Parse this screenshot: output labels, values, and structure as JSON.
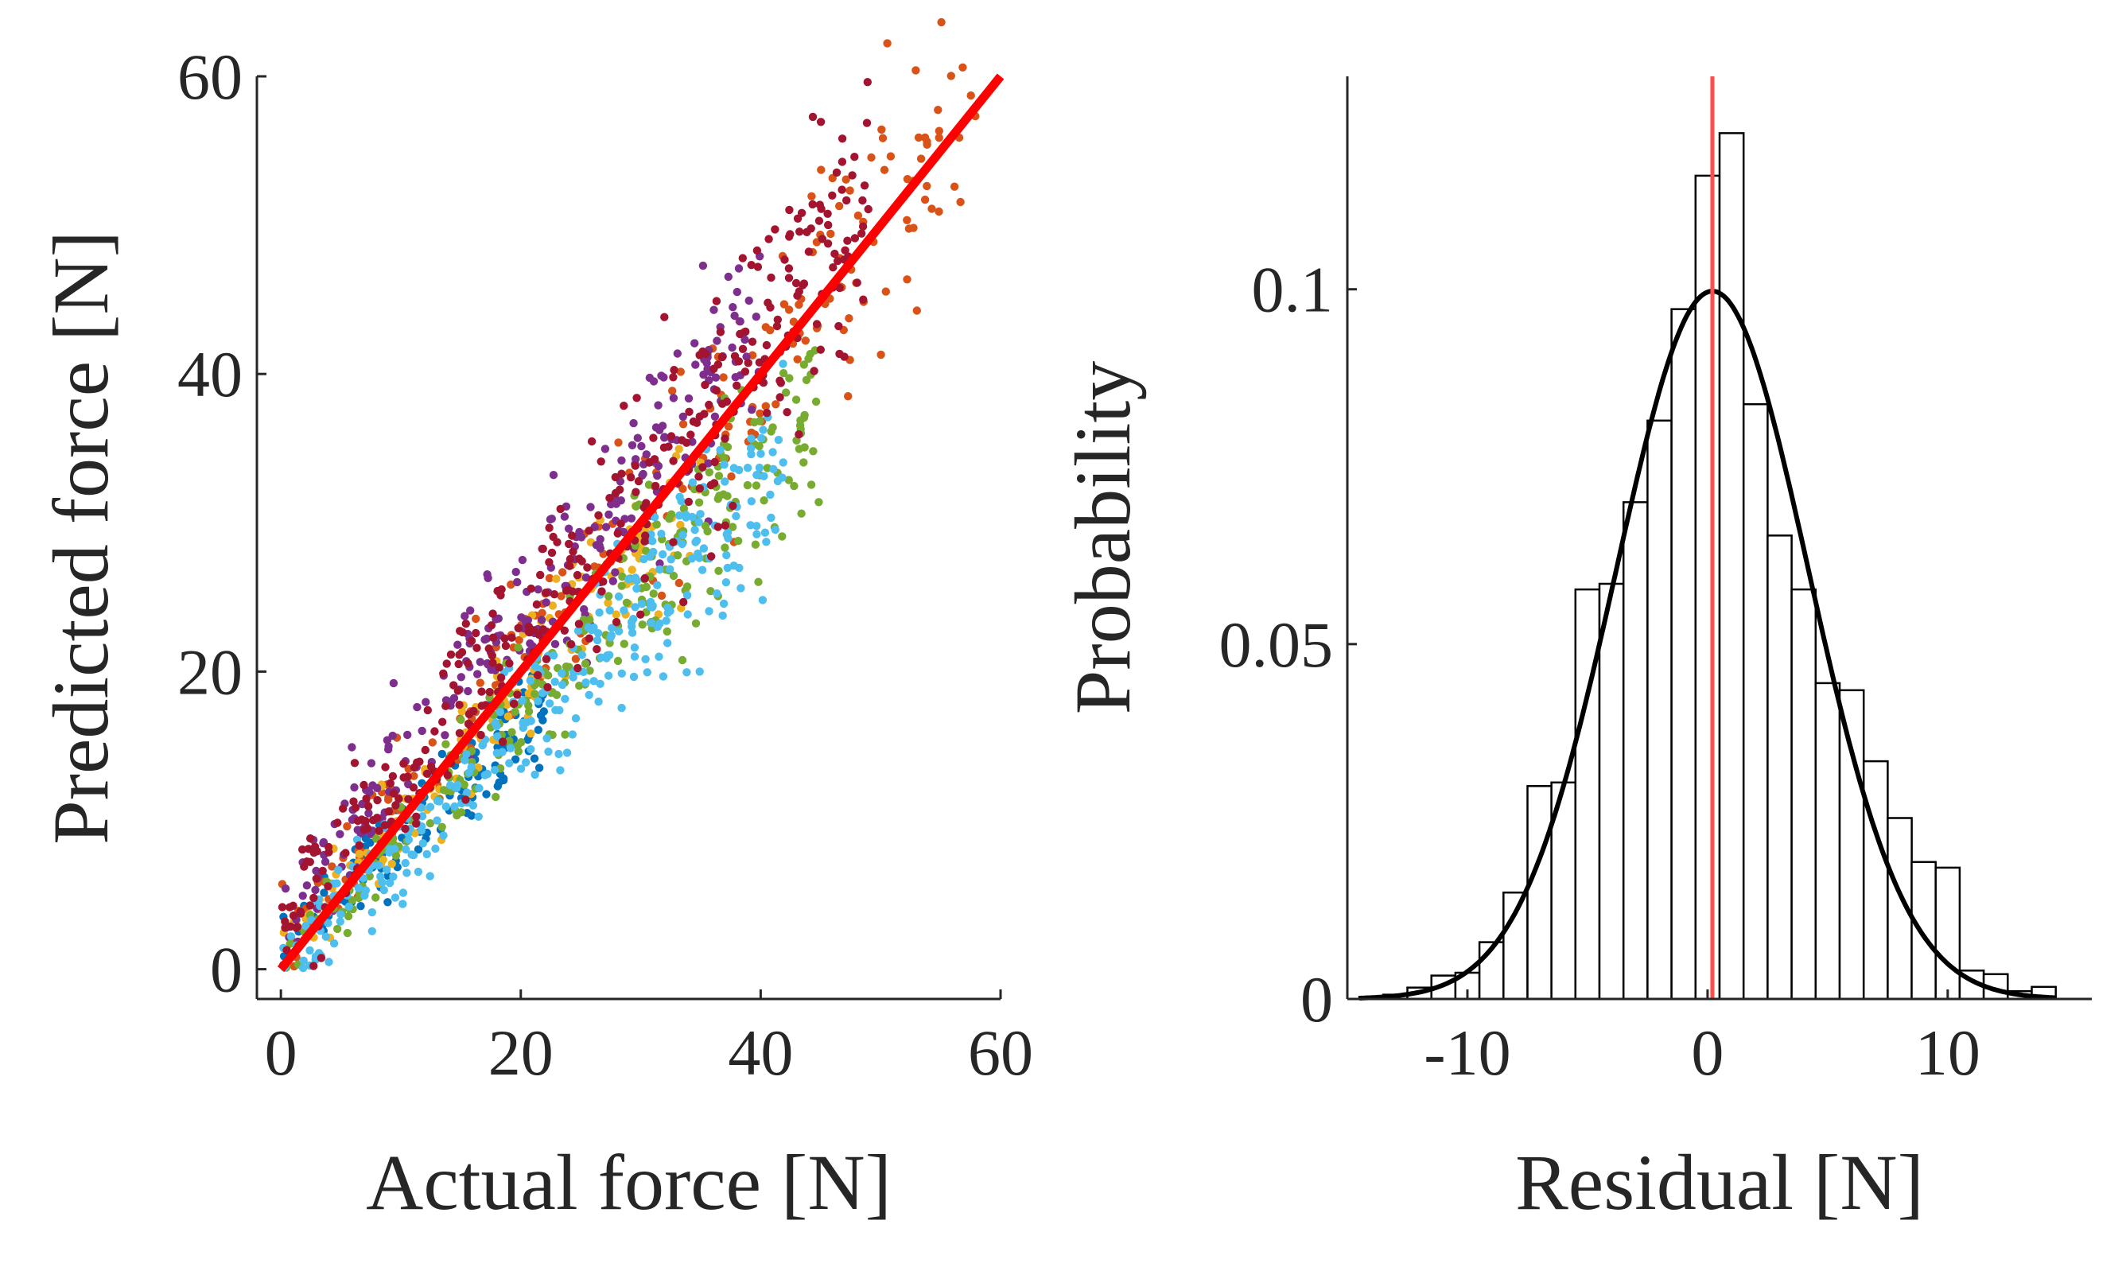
{
  "chart_data": [
    {
      "type": "scatter",
      "title": "",
      "xlabel": "Actual force [N]",
      "ylabel": "Predicted force [N]",
      "xlim": [
        -2,
        60
      ],
      "ylim": [
        -2,
        60
      ],
      "xticks": [
        0,
        20,
        40,
        60
      ],
      "yticks": [
        0,
        20,
        40,
        60
      ],
      "xtick_labels": [
        "0",
        "20",
        "40",
        "60"
      ],
      "ytick_labels": [
        "0",
        "20",
        "40",
        "60"
      ],
      "grid": false,
      "series": [
        {
          "name": "series-1",
          "color": "#0072bd",
          "x_max": 22,
          "slope": 0.78,
          "intercept": 1.0,
          "spread": 2.2,
          "n": 120
        },
        {
          "name": "series-2",
          "color": "#d95319",
          "x_max": 58,
          "slope": 0.98,
          "intercept": 1.5,
          "spread": 3.0,
          "n": 220
        },
        {
          "name": "series-3",
          "color": "#edb120",
          "x_max": 35,
          "slope": 0.9,
          "intercept": 1.0,
          "spread": 2.5,
          "n": 150
        },
        {
          "name": "series-4",
          "color": "#7e2f8e",
          "x_max": 40,
          "slope": 1.02,
          "intercept": 3.0,
          "spread": 3.2,
          "n": 260
        },
        {
          "name": "series-5",
          "color": "#77ac30",
          "x_max": 45,
          "slope": 0.84,
          "intercept": 0.5,
          "spread": 2.6,
          "n": 260
        },
        {
          "name": "series-6",
          "color": "#4dbeee",
          "x_max": 42,
          "slope": 0.8,
          "intercept": 0.0,
          "spread": 2.8,
          "n": 320
        },
        {
          "name": "series-7",
          "color": "#a2142f",
          "x_max": 49,
          "slope": 0.97,
          "intercept": 3.0,
          "spread": 3.5,
          "n": 380
        }
      ],
      "reference_line": {
        "name": "identity",
        "color": "#ff0000",
        "x": [
          0,
          60
        ],
        "y": [
          0,
          60
        ]
      }
    },
    {
      "type": "bar",
      "subtype": "histogram",
      "title": "",
      "xlabel": "Residual [N]",
      "ylabel": "Probability",
      "xlim": [
        -15,
        16
      ],
      "ylim": [
        0,
        0.13
      ],
      "xticks": [
        -10,
        0,
        10
      ],
      "yticks": [
        0,
        0.05,
        0.1
      ],
      "xtick_labels": [
        "-10",
        "0",
        "10"
      ],
      "ytick_labels": [
        "0",
        "0.05",
        "0.1"
      ],
      "grid": false,
      "bin_edges": [
        -14.5,
        -13.5,
        -12.5,
        -11.5,
        -10.5,
        -9.5,
        -8.5,
        -7.5,
        -6.5,
        -5.5,
        -4.5,
        -3.5,
        -2.5,
        -1.5,
        -0.5,
        0.5,
        1.5,
        2.5,
        3.5,
        4.5,
        5.5,
        6.5,
        7.5,
        8.5,
        9.5,
        10.5,
        11.5,
        12.5,
        13.5,
        14.5
      ],
      "values": [
        0.0003,
        0.0006,
        0.0016,
        0.0033,
        0.0037,
        0.008,
        0.015,
        0.03,
        0.0305,
        0.0577,
        0.0585,
        0.07,
        0.0815,
        0.0972,
        0.116,
        0.122,
        0.0838,
        0.0653,
        0.0577,
        0.0445,
        0.0435,
        0.0335,
        0.0255,
        0.0193,
        0.0185,
        0.004,
        0.0035,
        0.0011,
        0.0017,
        0.0002
      ],
      "fit_curve": {
        "type": "normal",
        "mean": 0.2,
        "std": 4.0,
        "color": "#000000",
        "x_range": [
          -14.5,
          14.5
        ]
      },
      "reference_line": {
        "name": "mean-residual",
        "color": "#ff4d4d",
        "x": 0.2
      }
    }
  ]
}
